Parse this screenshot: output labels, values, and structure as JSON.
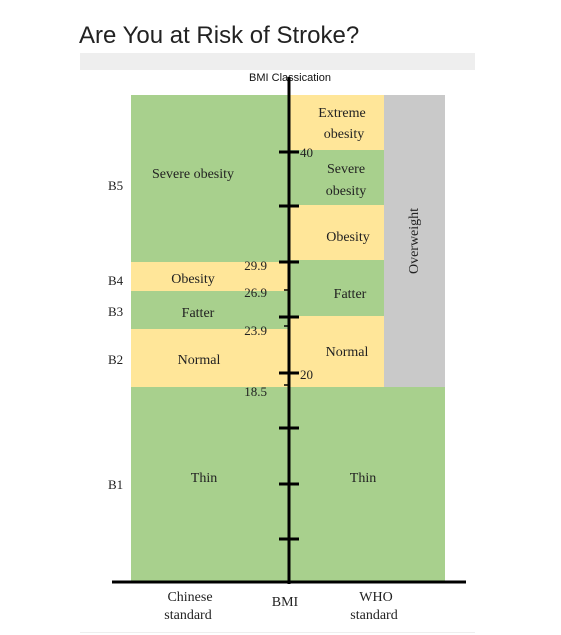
{
  "title": "Are You at Risk of Stroke?",
  "diagram": {
    "header": "BMI Classication",
    "colors": {
      "green": "#a8d08d",
      "yellow": "#ffe699",
      "gray": "#c9c9c9",
      "axis": "#000000"
    },
    "chinese": {
      "bands": [
        {
          "code": "B5",
          "label": "Severe obesity"
        },
        {
          "code": "B4",
          "label": "Obesity"
        },
        {
          "code": "B3",
          "label": "Fatter"
        },
        {
          "code": "B2",
          "label": "Normal"
        },
        {
          "code": "B1",
          "label": "Thin"
        }
      ],
      "thresholds": [
        "29.9",
        "26.9",
        "23.9",
        "18.5"
      ]
    },
    "who": {
      "bands": [
        {
          "label_line1": "Extreme",
          "label_line2": "obesity"
        },
        {
          "label_line1": "Severe",
          "label_line2": "obesity"
        },
        {
          "label": "Obesity"
        },
        {
          "label": "Fatter"
        },
        {
          "label": "Normal"
        },
        {
          "label": "Thin"
        }
      ],
      "thresholds": [
        "40",
        "20"
      ],
      "group_label": "Overweight"
    },
    "bottom_labels": {
      "chinese_line1": "Chinese",
      "chinese_line2": "standard",
      "bmi": "BMI",
      "who_line1": "WHO",
      "who_line2": "standard"
    }
  }
}
